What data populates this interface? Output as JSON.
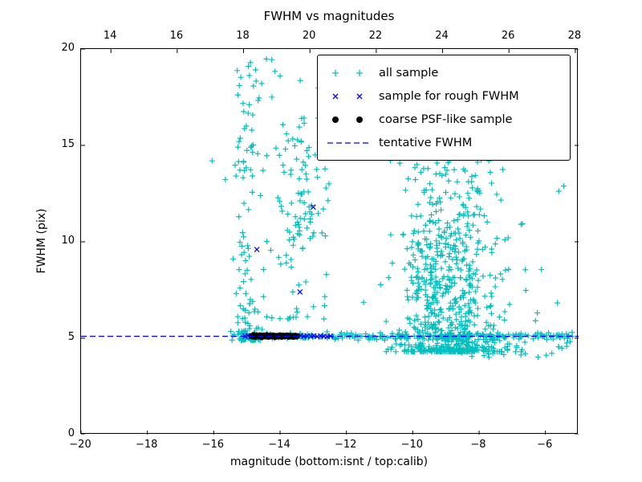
{
  "chart_data": {
    "type": "scatter",
    "title": "FWHM vs magnitudes",
    "xlabel": "magnitude (bottom:isnt / top:calib)",
    "ylabel": "FWHM (pix)",
    "xlim": [
      -20,
      -5
    ],
    "ylim": [
      0,
      20
    ],
    "x_ticks_bottom": [
      -20,
      -18,
      -16,
      -14,
      -12,
      -10,
      -8,
      -6
    ],
    "x_ticks_top": [
      14,
      16,
      18,
      20,
      22,
      24,
      26,
      28
    ],
    "top_axis_offset": 33.1,
    "y_ticks": [
      0,
      5,
      10,
      15,
      20
    ],
    "grid": false,
    "legend_position": "upper right",
    "tentative_fwhm": 5.1,
    "colors": {
      "all_sample": "#00bfbf",
      "rough_fwhm_sample": "#0000ff",
      "coarse_psf_sample": "#000000",
      "tentative_line": "#0000ff"
    },
    "legend": [
      {
        "label": "all sample",
        "marker": "plus",
        "color": "#00bfbf"
      },
      {
        "label": "sample for rough FWHM",
        "marker": "x",
        "color": "#0000ff"
      },
      {
        "label": "coarse PSF-like sample",
        "marker": "circle",
        "color": "#000000"
      },
      {
        "label": "tentative FWHM",
        "marker": "dashed-line",
        "color": "#0000ff"
      }
    ],
    "series": [
      {
        "name": "all sample",
        "marker": "plus",
        "color": "#00bfbf",
        "seed": 42,
        "clusters": [
          {
            "count": 120,
            "x": {
              "dist": "normal",
              "mean": -15.0,
              "sd": 0.22,
              "min": -15.65,
              "max": -14.5
            },
            "y": {
              "dist": "power",
              "min": 4.9,
              "max": 19.6,
              "exp": 3.2
            }
          },
          {
            "count": 18,
            "x": {
              "dist": "normal",
              "mean": -14.9,
              "sd": 0.2,
              "min": -15.4,
              "max": -14.4
            },
            "y": {
              "dist": "uniform",
              "min": 13.5,
              "max": 19.6
            }
          },
          {
            "count": 60,
            "x": {
              "dist": "normal",
              "mean": -13.5,
              "sd": 0.45,
              "min": -14.4,
              "max": -12.4
            },
            "y": {
              "dist": "power",
              "min": 6.0,
              "max": 16.5,
              "exp": 1.6
            }
          },
          {
            "count": 45,
            "x": {
              "dist": "normal",
              "mean": -13.15,
              "sd": 0.3,
              "min": -13.9,
              "max": -12.5
            },
            "y": {
              "dist": "normal",
              "mean": 12.5,
              "sd": 2.0,
              "min": 8.5,
              "max": 17.2
            }
          },
          {
            "count": 600,
            "x": {
              "dist": "normal",
              "mean": -8.9,
              "sd": 0.8,
              "min": -10.8,
              "max": -6.3
            },
            "y": {
              "dist": "power",
              "min": 4.3,
              "max": 14.8,
              "exp": 3.0
            }
          },
          {
            "count": 130,
            "x": {
              "dist": "normal",
              "mean": -9.3,
              "sd": 0.6,
              "min": -10.8,
              "max": -7.6
            },
            "y": {
              "dist": "normal",
              "mean": 8.8,
              "sd": 1.6,
              "min": 5.5,
              "max": 13.5
            }
          },
          {
            "count": 260,
            "x": {
              "dist": "uniform",
              "min": -15.2,
              "max": -5.15
            },
            "y": {
              "dist": "normal",
              "mean": 5.12,
              "sd": 0.09,
              "min": 4.8,
              "max": 5.45
            }
          },
          {
            "count": 30,
            "x": {
              "dist": "uniform",
              "min": -8.6,
              "max": -5.2
            },
            "y": {
              "dist": "uniform",
              "min": 4.0,
              "max": 4.95
            }
          },
          {
            "count": 55,
            "x": {
              "dist": "uniform",
              "min": -14.7,
              "max": -5.4
            },
            "y": {
              "dist": "uniform",
              "min": 5.6,
              "max": 19.7
            }
          }
        ],
        "extra_points": [
          [
            -16.05,
            14.2
          ],
          [
            -14.25,
            19.45
          ],
          [
            -14.0,
            18.6
          ],
          [
            -13.35,
            16.4
          ],
          [
            -6.3,
            5.9
          ],
          [
            -5.6,
            4.55
          ],
          [
            -5.35,
            5.1
          ],
          [
            -6.9,
            4.3
          ],
          [
            -7.3,
            14.7
          ],
          [
            -9.2,
            14.9
          ]
        ]
      },
      {
        "name": "sample for rough FWHM",
        "marker": "x",
        "color": "#0000ff",
        "points": [
          [
            -15.05,
            5.1
          ],
          [
            -14.97,
            5.14
          ],
          [
            -14.88,
            5.08
          ],
          [
            -14.78,
            5.12
          ],
          [
            -14.66,
            5.1
          ],
          [
            -14.55,
            5.15
          ],
          [
            -14.47,
            5.07
          ],
          [
            -14.38,
            5.12
          ],
          [
            -14.28,
            5.1
          ],
          [
            -14.18,
            5.14
          ],
          [
            -14.08,
            5.08
          ],
          [
            -13.98,
            5.12
          ],
          [
            -13.88,
            5.1
          ],
          [
            -13.78,
            5.13
          ],
          [
            -13.68,
            5.08
          ],
          [
            -13.58,
            5.12
          ],
          [
            -13.48,
            5.1
          ],
          [
            -13.38,
            5.14
          ],
          [
            -13.28,
            5.09
          ],
          [
            -13.18,
            5.12
          ],
          [
            -13.08,
            5.1
          ],
          [
            -12.98,
            5.13
          ],
          [
            -12.88,
            5.09
          ],
          [
            -12.78,
            5.12
          ],
          [
            -12.68,
            5.1
          ],
          [
            -12.58,
            5.08
          ],
          [
            -12.48,
            5.12
          ],
          [
            -14.7,
            9.6
          ],
          [
            -13.0,
            11.8
          ],
          [
            -13.4,
            7.4
          ]
        ]
      },
      {
        "name": "coarse PSF-like sample",
        "marker": "circle",
        "color": "#000000",
        "points": [
          [
            -14.85,
            5.1
          ],
          [
            -14.8,
            5.15
          ],
          [
            -14.75,
            5.08
          ],
          [
            -14.7,
            5.12
          ],
          [
            -14.65,
            5.1
          ],
          [
            -14.6,
            5.14
          ],
          [
            -14.55,
            5.07
          ],
          [
            -14.5,
            5.12
          ],
          [
            -14.45,
            5.1
          ],
          [
            -14.4,
            5.15
          ],
          [
            -14.35,
            5.08
          ],
          [
            -14.3,
            5.12
          ],
          [
            -14.25,
            5.1
          ],
          [
            -14.2,
            5.13
          ],
          [
            -14.15,
            5.07
          ],
          [
            -14.1,
            5.11
          ],
          [
            -14.05,
            5.1
          ],
          [
            -14.0,
            5.14
          ],
          [
            -13.95,
            5.08
          ],
          [
            -13.9,
            5.12
          ],
          [
            -13.85,
            5.1
          ],
          [
            -13.8,
            5.13
          ],
          [
            -13.75,
            5.09
          ],
          [
            -13.7,
            5.12
          ],
          [
            -13.65,
            5.1
          ],
          [
            -13.6,
            5.08
          ],
          [
            -13.55,
            5.12
          ],
          [
            -13.5,
            5.1
          ]
        ]
      },
      {
        "name": "tentative FWHM",
        "marker": "dashed-line",
        "type": "hline",
        "y": 5.1,
        "color": "#0000ff"
      }
    ]
  }
}
